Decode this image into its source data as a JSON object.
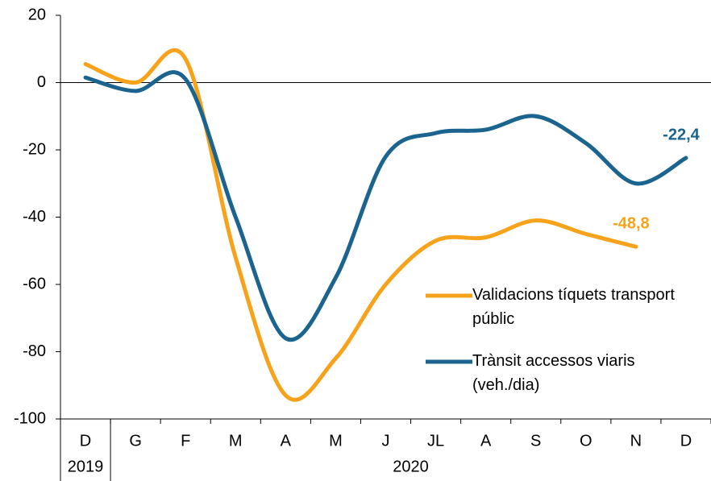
{
  "chart_data": {
    "type": "line",
    "categories": [
      "D",
      "G",
      "F",
      "M",
      "A",
      "M",
      "J",
      "JL",
      "A",
      "S",
      "O",
      "N",
      "D"
    ],
    "years": [
      "2019",
      "2020"
    ],
    "series": [
      {
        "name": "Validacions tíquets transport públic",
        "color": "#f7a21b",
        "values": [
          5.5,
          0,
          7,
          -52,
          -93,
          -82,
          -60,
          -47,
          -46,
          -41,
          -45,
          -48.8,
          null
        ],
        "value_labels": [
          null,
          null,
          null,
          null,
          null,
          null,
          null,
          null,
          null,
          null,
          null,
          "-48,8",
          null
        ]
      },
      {
        "name": "Trànsit accessos viaris (veh./dia)",
        "color": "#1b6490",
        "values": [
          1.5,
          -2.5,
          1,
          -40,
          -76,
          -58,
          -22,
          -15,
          -14,
          -10,
          -18,
          -30,
          -22.4
        ],
        "value_labels": [
          null,
          null,
          null,
          null,
          null,
          null,
          null,
          null,
          null,
          null,
          null,
          null,
          "-22,4"
        ]
      }
    ],
    "ylim": [
      -100,
      20
    ],
    "yticks": [
      -100,
      -80,
      -60,
      -40,
      -20,
      0,
      20
    ]
  }
}
